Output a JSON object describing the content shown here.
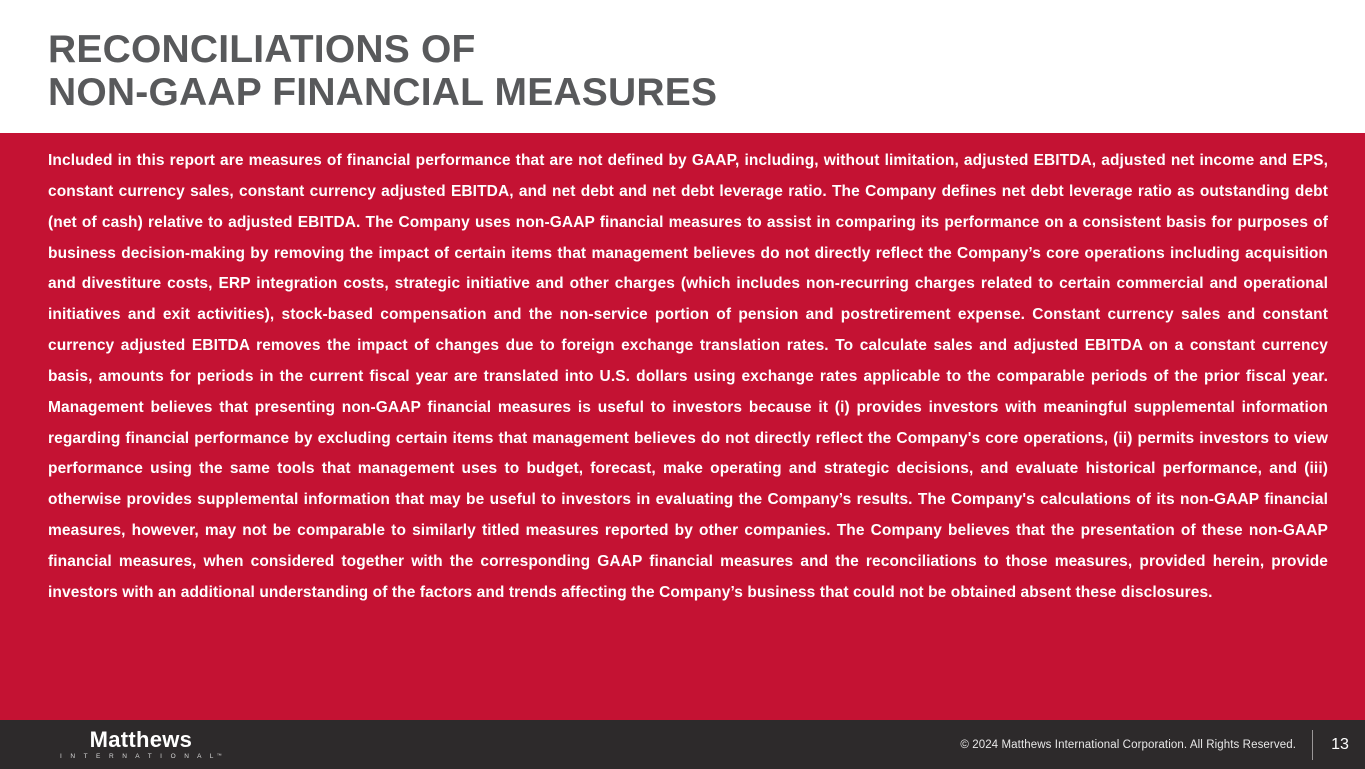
{
  "slide": {
    "title_line1": "RECONCILIATIONS OF",
    "title_line2": "NON-GAAP FINANCIAL MEASURES",
    "body_paragraph": "Included in this report are measures of financial performance that are not defined by GAAP, including, without limitation, adjusted EBITDA, adjusted net income and EPS, constant currency sales, constant currency adjusted EBITDA, and net debt and net debt leverage ratio.  The Company defines net debt leverage ratio as outstanding debt (net of cash) relative to adjusted EBITDA. The Company uses non-GAAP financial measures to assist in comparing its performance on a consistent basis for purposes of business decision-making by removing the impact of certain items that management believes do not directly reflect the Company’s core operations including acquisition and divestiture costs, ERP integration costs, strategic initiative and other charges (which includes non-recurring charges related to certain commercial and operational initiatives and exit activities), stock-based compensation and the non-service portion of pension and postretirement expense.  Constant currency sales and constant currency adjusted EBITDA removes the impact of changes due to foreign exchange translation rates.  To calculate sales and adjusted EBITDA on a constant currency basis, amounts for periods in the current fiscal year are translated into U.S. dollars using exchange rates applicable to the comparable periods of the prior fiscal year. Management believes that presenting non-GAAP financial measures is useful to investors because it (i) provides investors with meaningful supplemental information regarding financial performance by excluding certain items that management believes do not directly reflect the Company's core operations, (ii) permits investors to view performance using the same tools that management uses to budget, forecast, make operating and strategic decisions, and evaluate historical performance, and (iii) otherwise provides supplemental information that may be useful to investors in evaluating the Company’s results. The Company's calculations of its non-GAAP financial measures, however, may not be comparable to similarly titled measures reported by other companies. The Company believes that the presentation of these non-GAAP financial measures, when considered together with the corresponding GAAP financial measures and the reconciliations to those measures, provided herein, provide investors with an additional understanding of the factors and trends affecting the Company’s business that could not be obtained absent these disclosures.",
    "footer": {
      "logo_primary": "Matthews",
      "logo_secondary": "I N T E R N A T I O N A L",
      "logo_trademark": "™",
      "copyright": "© 2024 Matthews International Corporation. All Rights Reserved.",
      "page_number": "13"
    },
    "colors": {
      "body_red": "#C41233",
      "footer_dark": "#2D2A2B",
      "title_gray": "#58595B"
    }
  }
}
